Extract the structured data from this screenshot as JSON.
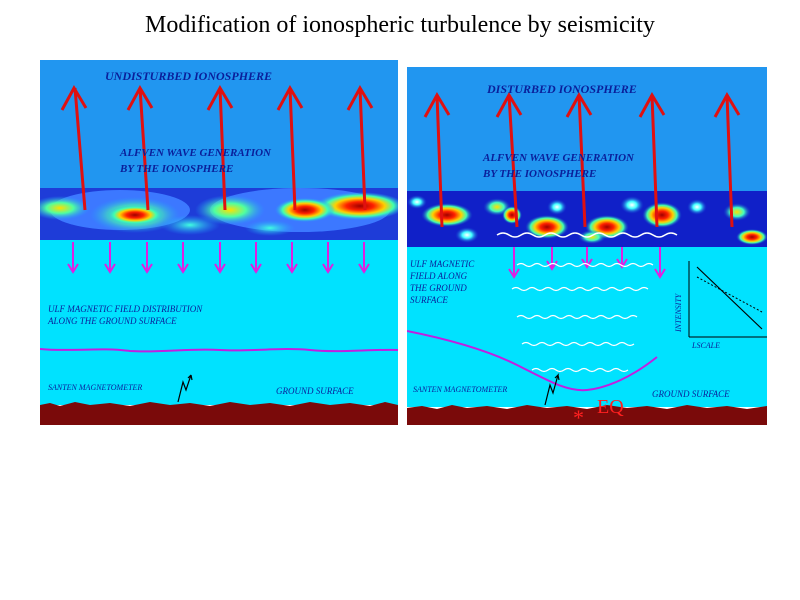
{
  "title": "Modification of ionospheric turbulence by seismicity",
  "left_panel": {
    "heading": "UNDISTURBED IONOSPHERE",
    "alfven_line1": "ALFVEN WAVE GENERATION",
    "alfven_line2": "BY THE IONOSPHERE",
    "ulf_line1": "ULF MAGNETIC FIELD DISTRIBUTION",
    "ulf_line2": "ALONG THE GROUND SURFACE",
    "magnetometer": "SANTEN MAGNETOMETER",
    "ground": "GROUND SURFACE"
  },
  "right_panel": {
    "heading": "DISTURBED IONOSPHERE",
    "alfven_line1": "ALFVEN WAVE GENERATION",
    "alfven_line2": "BY THE IONOSPHERE",
    "ulf_line1": "ULF MAGNETIC",
    "ulf_line2": "FIELD ALONG",
    "ulf_line3": "THE GROUND",
    "ulf_line4": "SURFACE",
    "magnetometer": "SANTEN MAGNETOMETER",
    "ground": "GROUND SURFACE",
    "eq_label": "EQ",
    "inset_ylabel": "INTENSITY",
    "inset_xlabel": "LSCALE"
  },
  "colors": {
    "sky_top": "#2196f0",
    "lower_cyan": "#00e2ff",
    "ionosphere_base": "#1428c8",
    "arrow_red": "#e01010",
    "arrow_magenta": "#e020e0",
    "ground_brown": "#7a0a0a",
    "label_blue": "#0a1f9a"
  }
}
